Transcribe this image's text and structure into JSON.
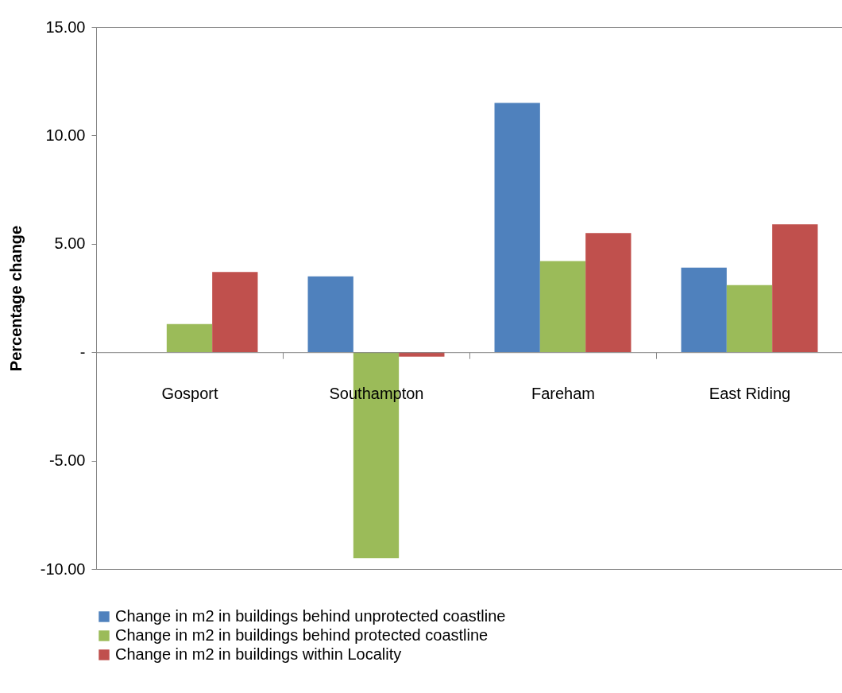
{
  "chart_data": {
    "type": "bar",
    "ylabel": "Percentage change",
    "categories": [
      "Gosport",
      "Southampton",
      "Fareham",
      "East Riding"
    ],
    "series": [
      {
        "name": "Change in m2 in buildings behind unprotected coastline",
        "color": "#4f81bd",
        "values": [
          0,
          3.5,
          11.5,
          3.9
        ]
      },
      {
        "name": "Change in m2 in buildings behind protected coastline",
        "color": "#9bbb59",
        "values": [
          1.3,
          -9.5,
          4.2,
          3.1
        ]
      },
      {
        "name": "Change in m2 in buildings within Locality",
        "color": "#c0504d",
        "values": [
          3.7,
          -0.2,
          5.5,
          5.9
        ]
      }
    ],
    "ylim": [
      -10,
      15
    ],
    "yticks": [
      {
        "value": -10,
        "label": "-10.00"
      },
      {
        "value": -5,
        "label": "-5.00"
      },
      {
        "value": 0,
        "label": "-"
      },
      {
        "value": 5,
        "label": "5.00"
      },
      {
        "value": 10,
        "label": "10.00"
      },
      {
        "value": 15,
        "label": "15.00"
      }
    ],
    "grid": false,
    "legend": "bottom"
  }
}
